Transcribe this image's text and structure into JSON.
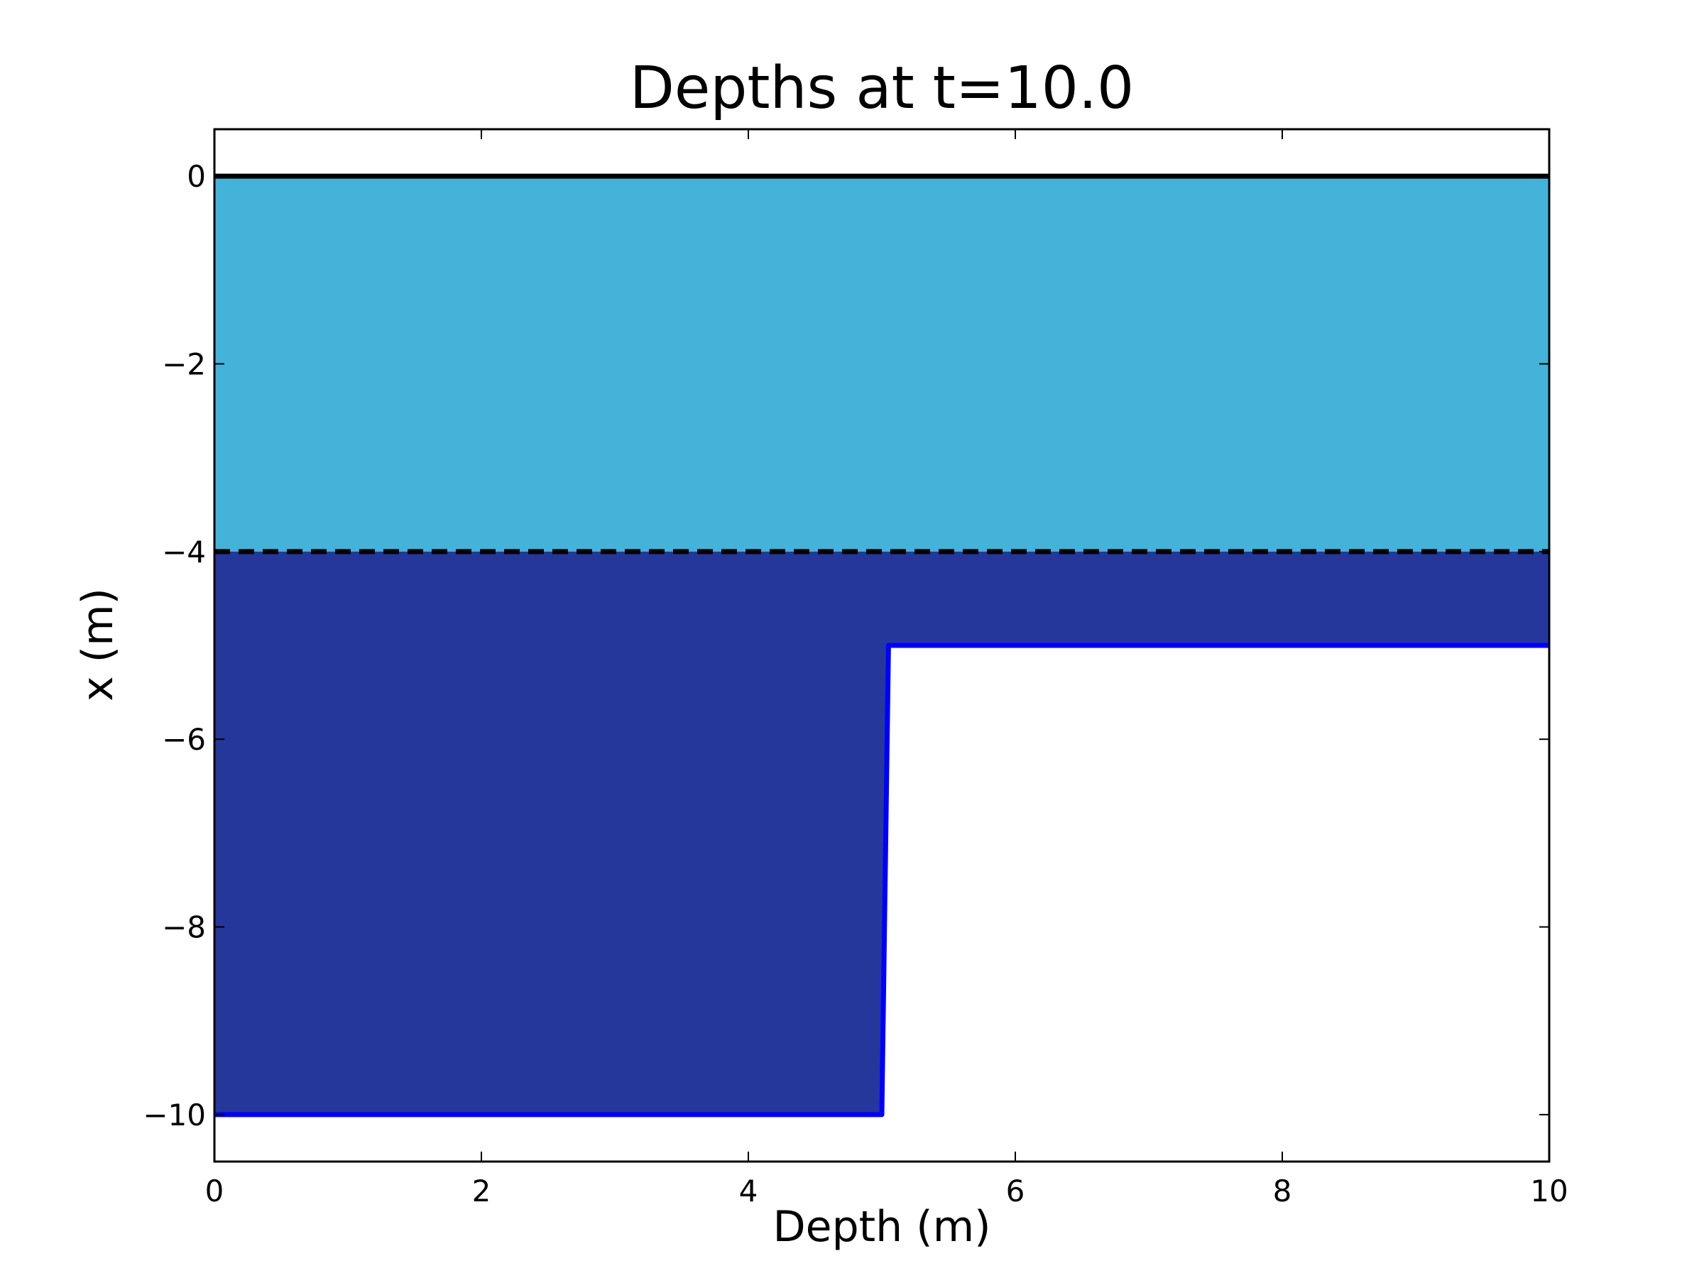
{
  "chart_data": {
    "type": "area",
    "title": "Depths at t=10.0",
    "xlabel": "Depth (m)",
    "ylabel": "x (m)",
    "xlim": [
      0,
      10
    ],
    "ylim": [
      -10.5,
      0.5
    ],
    "xticks": [
      0,
      2,
      4,
      6,
      8,
      10
    ],
    "xtick_labels": [
      "0",
      "2",
      "4",
      "6",
      "8",
      "10"
    ],
    "yticks": [
      0,
      -2,
      -4,
      -6,
      -8,
      -10
    ],
    "ytick_labels": [
      "0",
      "−2",
      "−4",
      "−6",
      "−8",
      "−10"
    ],
    "grid": false,
    "legend": "none",
    "series": [
      {
        "role": "upper-layer-fill",
        "color": "#43b3d9",
        "x": [
          0,
          10
        ],
        "top": [
          0,
          0
        ],
        "bottom": [
          -4,
          -4
        ]
      },
      {
        "role": "lower-layer-fill",
        "color": "#25379b",
        "x": [
          0,
          5,
          5.05,
          10
        ],
        "top": [
          -4,
          -4,
          -4,
          -4
        ],
        "bottom": [
          -10,
          -10,
          -5,
          -5
        ]
      },
      {
        "role": "surface-line",
        "color": "#000000",
        "style": "solid",
        "x": [
          0,
          10
        ],
        "y": [
          0,
          0
        ]
      },
      {
        "role": "interface-line",
        "color": "#000000",
        "style": "dashed",
        "x": [
          0,
          10
        ],
        "y": [
          -4,
          -4
        ]
      },
      {
        "role": "bathymetry-line",
        "color": "#0000ff",
        "style": "solid",
        "x": [
          0,
          5,
          5.05,
          10
        ],
        "y": [
          -10,
          -10,
          -5,
          -5
        ]
      }
    ]
  }
}
